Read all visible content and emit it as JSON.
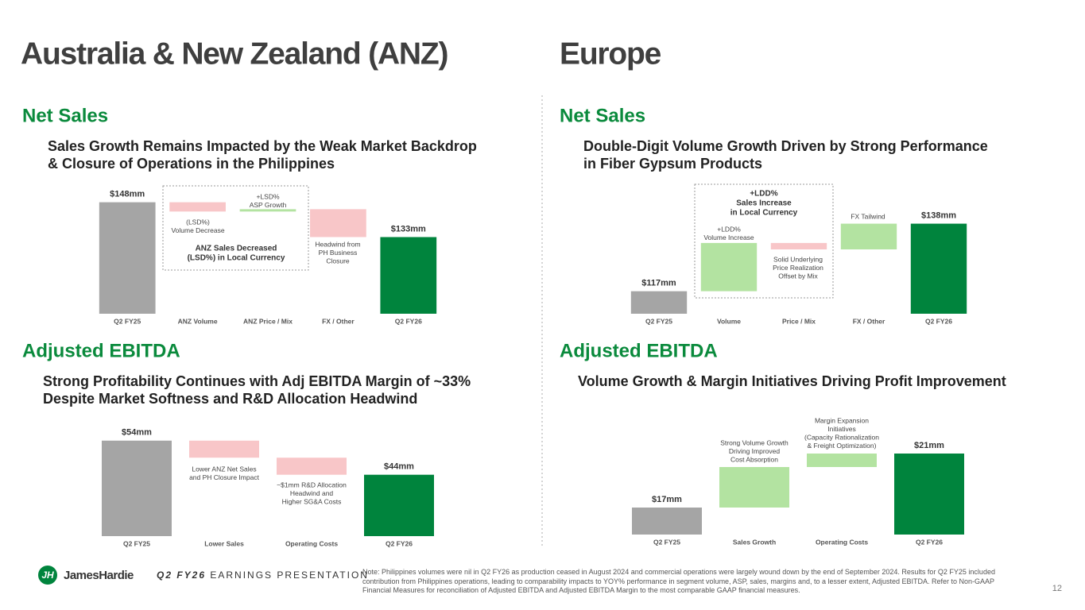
{
  "regions": [
    "Australia & New Zealand (ANZ)",
    "Europe"
  ],
  "chart_data": [
    {
      "type": "waterfall",
      "heading": "Net Sales",
      "subtitle": [
        "Sales Growth Remains Impacted by the Weak Market Backdrop",
        "& Closure of Operations in the Philippines"
      ],
      "categories": [
        "Q2 FY25",
        "ANZ Volume",
        "ANZ Price / Mix",
        "FX / Other",
        "Q2 FY26"
      ],
      "values": [
        148,
        -4,
        1,
        -12,
        133
      ],
      "value_labels": [
        "$148mm",
        null,
        null,
        null,
        "$133mm"
      ],
      "ylim": [
        100,
        153
      ],
      "annotations": [
        [
          "(LSD%)",
          "Volume Decrease"
        ],
        [
          "+LSD%",
          "ASP Growth"
        ],
        [
          "Headwind from",
          "PH Business",
          "Closure"
        ]
      ],
      "callout": [
        "ANZ Sales Decreased",
        "(LSD%) in Local Currency"
      ],
      "start_color": "#a5a5a5",
      "end_color": "#00843d",
      "increase_color": "#b3e3a1",
      "decrease_color": "#f8c6c8"
    },
    {
      "type": "waterfall",
      "heading": "Net Sales",
      "subtitle": [
        "Double-Digit Volume Growth Driven by Strong Performance",
        "in Fiber Gypsum Products"
      ],
      "categories": [
        "Q2 FY25",
        "Volume",
        "Price / Mix",
        "FX / Other",
        "Q2 FY26"
      ],
      "values": [
        117,
        15,
        -2,
        8,
        138
      ],
      "value_labels": [
        "$117mm",
        null,
        null,
        null,
        "$138mm"
      ],
      "ylim": [
        110,
        150
      ],
      "annotations": [
        [
          "+LDD%",
          "Volume Increase"
        ],
        [
          "Solid Underlying",
          "Price Realization",
          "Offset by Mix"
        ],
        [
          "FX Tailwind"
        ]
      ],
      "callout": [
        "+LDD%",
        "Sales Increase",
        "in Local Currency"
      ],
      "start_color": "#a5a5a5",
      "end_color": "#00843d",
      "increase_color": "#b3e3a1",
      "decrease_color": "#f8c6c8"
    },
    {
      "type": "waterfall",
      "heading": "Adjusted EBITDA",
      "subtitle": [
        "Strong Profitability Continues with Adj EBITDA Margin of ~33%",
        "Despite Market Softness and R&D Allocation Headwind"
      ],
      "categories": [
        "Q2 FY25",
        "Lower Sales",
        "Operating Costs",
        "Q2 FY26"
      ],
      "values": [
        54,
        -5,
        -5,
        44
      ],
      "value_labels": [
        "$54mm",
        null,
        null,
        "$44mm"
      ],
      "ylim": [
        26,
        60
      ],
      "annotations": [
        [
          "Lower ANZ Net Sales",
          "and PH Closure Impact"
        ],
        [
          "~$1mm R&D Allocation",
          "Headwind and",
          "Higher SG&A Costs"
        ]
      ],
      "start_color": "#a5a5a5",
      "end_color": "#00843d",
      "increase_color": "#b3e3a1",
      "decrease_color": "#f8c6c8"
    },
    {
      "type": "waterfall",
      "heading": "Adjusted EBITDA",
      "subtitle": [
        "Volume Growth & Margin Initiatives Driving Profit Improvement"
      ],
      "categories": [
        "Q2 FY25",
        "Sales Growth",
        "Operating Costs",
        "Q2 FY26"
      ],
      "values": [
        17,
        3,
        1,
        21
      ],
      "value_labels": [
        "$17mm",
        null,
        null,
        "$21mm"
      ],
      "ylim": [
        15,
        24
      ],
      "annotations": [
        [
          "Strong Volume Growth",
          "Driving Improved",
          "Cost Absorption"
        ],
        [
          "Margin Expansion",
          "Initiatives",
          "(Capacity Rationalization",
          "& Freight Optimization)"
        ]
      ],
      "start_color": "#a5a5a5",
      "end_color": "#00843d",
      "increase_color": "#b3e3a1",
      "decrease_color": "#f8c6c8"
    }
  ],
  "footer": {
    "brand": "JamesHardie",
    "event_bold": "Q2 FY26",
    "event": "EARNINGS PRESENTATION",
    "note": "Note: Philippines volumes were nil in Q2 FY26 as production ceased in August 2024 and commercial operations were largely wound down by the end of September 2024. Results for Q2 FY25 included contribution from Philippines operations, leading to comparability impacts to YOY% performance in segment volume, ASP, sales, margins and, to a lesser extent, Adjusted EBITDA. Refer to Non-GAAP Financial Measures for reconciliation of Adjusted EBITDA and Adjusted EBITDA Margin to the most comparable GAAP financial measures.",
    "page": "12"
  }
}
